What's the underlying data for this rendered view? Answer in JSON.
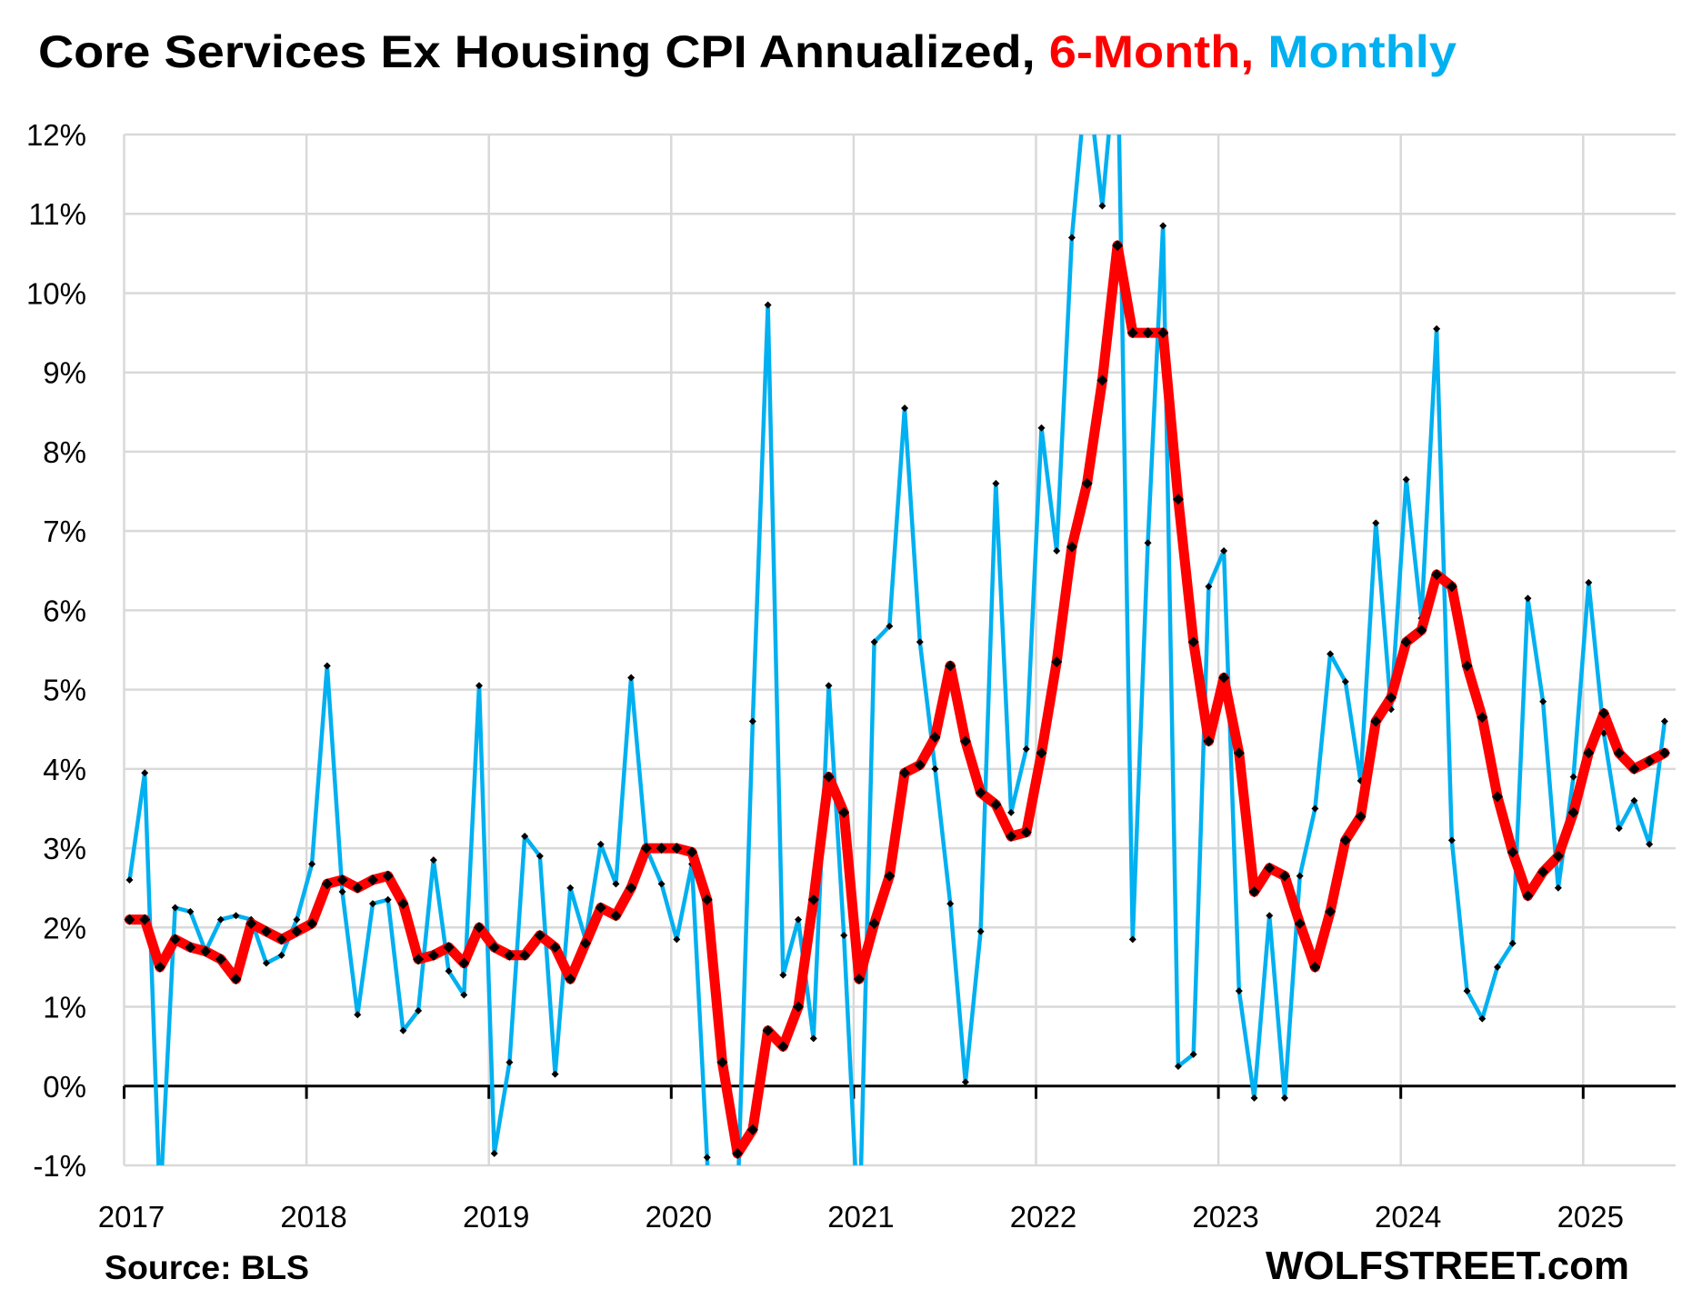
{
  "chart_data": {
    "type": "line",
    "title": {
      "main": "Core Services Ex Housing CPI Annualized, ",
      "part_red": "6-Month, ",
      "part_blue": "Monthly"
    },
    "xlabel": "",
    "ylabel": "",
    "ylim": [
      -1,
      12
    ],
    "yticks": [
      "-1%",
      "0%",
      "1%",
      "2%",
      "3%",
      "4%",
      "5%",
      "6%",
      "7%",
      "8%",
      "9%",
      "10%",
      "11%",
      "12%"
    ],
    "xticks": [
      "2017",
      "2018",
      "2019",
      "2020",
      "2021",
      "2022",
      "2023",
      "2024",
      "2025"
    ],
    "x_start": "2017-01",
    "x_frequency": "monthly",
    "grid": true,
    "series": [
      {
        "name": "6-Month",
        "color": "#ff0000",
        "values": [
          2.1,
          2.1,
          1.5,
          1.85,
          1.75,
          1.7,
          1.6,
          1.35,
          2.05,
          1.95,
          1.85,
          1.95,
          2.05,
          2.55,
          2.6,
          2.5,
          2.6,
          2.65,
          2.3,
          1.6,
          1.65,
          1.75,
          1.55,
          2.0,
          1.75,
          1.65,
          1.65,
          1.9,
          1.75,
          1.35,
          1.8,
          2.25,
          2.15,
          2.5,
          3.0,
          3.0,
          3.0,
          2.95,
          2.35,
          0.3,
          -0.85,
          -0.55,
          0.7,
          0.5,
          1.0,
          2.35,
          3.9,
          3.45,
          1.35,
          2.05,
          2.65,
          3.95,
          4.05,
          4.4,
          5.3,
          4.35,
          3.7,
          3.55,
          3.15,
          3.2,
          4.2,
          5.35,
          6.8,
          7.6,
          8.9,
          10.6,
          9.5,
          9.5,
          9.5,
          7.4,
          5.6,
          4.35,
          5.15,
          4.2,
          2.45,
          2.75,
          2.65,
          2.05,
          1.5,
          2.2,
          3.1,
          3.4,
          4.6,
          4.9,
          5.6,
          5.75,
          6.45,
          6.3,
          5.3,
          4.65,
          3.65,
          2.95,
          2.4,
          2.7,
          2.9,
          3.45,
          4.2,
          4.7,
          4.2,
          4.0,
          4.1,
          4.2
        ]
      },
      {
        "name": "Monthly",
        "color": "#00b0f0",
        "values": [
          2.6,
          3.95,
          -1.5,
          2.25,
          2.2,
          1.7,
          2.1,
          2.15,
          2.1,
          1.55,
          1.65,
          2.1,
          2.8,
          5.3,
          2.45,
          0.9,
          2.3,
          2.35,
          0.7,
          0.95,
          2.85,
          1.45,
          1.15,
          5.05,
          -0.85,
          0.3,
          3.15,
          2.9,
          0.15,
          2.5,
          1.85,
          3.05,
          2.55,
          5.15,
          3.0,
          2.55,
          1.85,
          2.8,
          -0.9,
          -5.5,
          -1.5,
          4.6,
          9.85,
          1.4,
          2.1,
          0.6,
          5.05,
          1.9,
          -2.0,
          5.6,
          5.8,
          8.55,
          5.6,
          4.0,
          2.3,
          0.05,
          1.95,
          7.6,
          3.45,
          4.25,
          8.3,
          6.75,
          10.7,
          12.8,
          11.1,
          13.2,
          1.85,
          6.85,
          10.85,
          0.25,
          0.4,
          6.3,
          6.75,
          1.2,
          -0.15,
          2.15,
          -0.15,
          2.65,
          3.5,
          5.45,
          5.1,
          3.85,
          7.1,
          4.75,
          7.65,
          5.9,
          9.55,
          3.1,
          1.2,
          0.85,
          1.5,
          1.8,
          6.15,
          4.85,
          2.5,
          3.9,
          6.35,
          4.45,
          3.25,
          3.6,
          3.05,
          4.6
        ]
      }
    ],
    "source": "Source: BLS",
    "brand": "WOLFSTREET.com"
  }
}
